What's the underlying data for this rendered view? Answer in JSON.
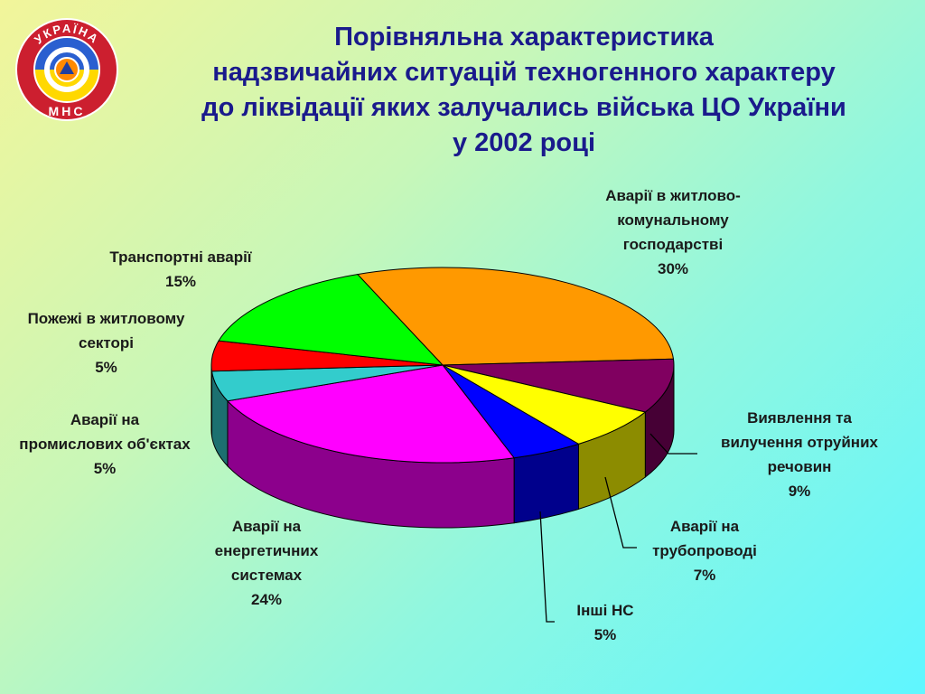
{
  "title": {
    "lines": [
      "Порівняльна характеристика",
      "надзвичайних ситуацій техногенного характеру",
      "до ліквідації яких залучались  війська ЦО України",
      "у 2002 році"
    ]
  },
  "logo": {
    "top_text": "УКРАЇНА",
    "bottom_text": "МНС"
  },
  "chart_data": {
    "type": "pie",
    "title": "",
    "slices": [
      {
        "label": "Аварії в житлово-комунальному господарстві",
        "value": 30,
        "display": "30%",
        "color": "#ff9900",
        "label_lines": [
          "Аварії в житлово-",
          "комунальному",
          "господарстві"
        ]
      },
      {
        "label": "Виявлення та вилучення отруйних речовин",
        "value": 9,
        "display": "9%",
        "color": "#800060",
        "label_lines": [
          "Виявлення та",
          "вилучення отруйних",
          "речовин"
        ]
      },
      {
        "label": "Аварії на трубопроводі",
        "value": 7,
        "display": "7%",
        "color": "#ffff00",
        "label_lines": [
          "Аварії на",
          "трубопроводі"
        ]
      },
      {
        "label": "Інші НС",
        "value": 5,
        "display": "5%",
        "color": "#0000ff",
        "label_lines": [
          "Інші НС"
        ]
      },
      {
        "label": "Аварії на енергетичних системах",
        "value": 24,
        "display": "24%",
        "color": "#ff00ff",
        "label_lines": [
          "Аварії на",
          "енергетичних",
          "системах"
        ]
      },
      {
        "label": "Аварії на промислових об'єктах",
        "value": 5,
        "display": "5%",
        "color": "#33cccc",
        "label_lines": [
          "Аварії на",
          "промислових об'єктах"
        ]
      },
      {
        "label": "Пожежі в житловому секторі",
        "value": 5,
        "display": "5%",
        "color": "#ff0000",
        "label_lines": [
          "Пожежі в житловому",
          "секторі"
        ]
      },
      {
        "label": "Транспортні аварії",
        "value": 15,
        "display": "15%",
        "color": "#00ff00",
        "label_lines": [
          "Транспортні аварії"
        ]
      }
    ]
  }
}
